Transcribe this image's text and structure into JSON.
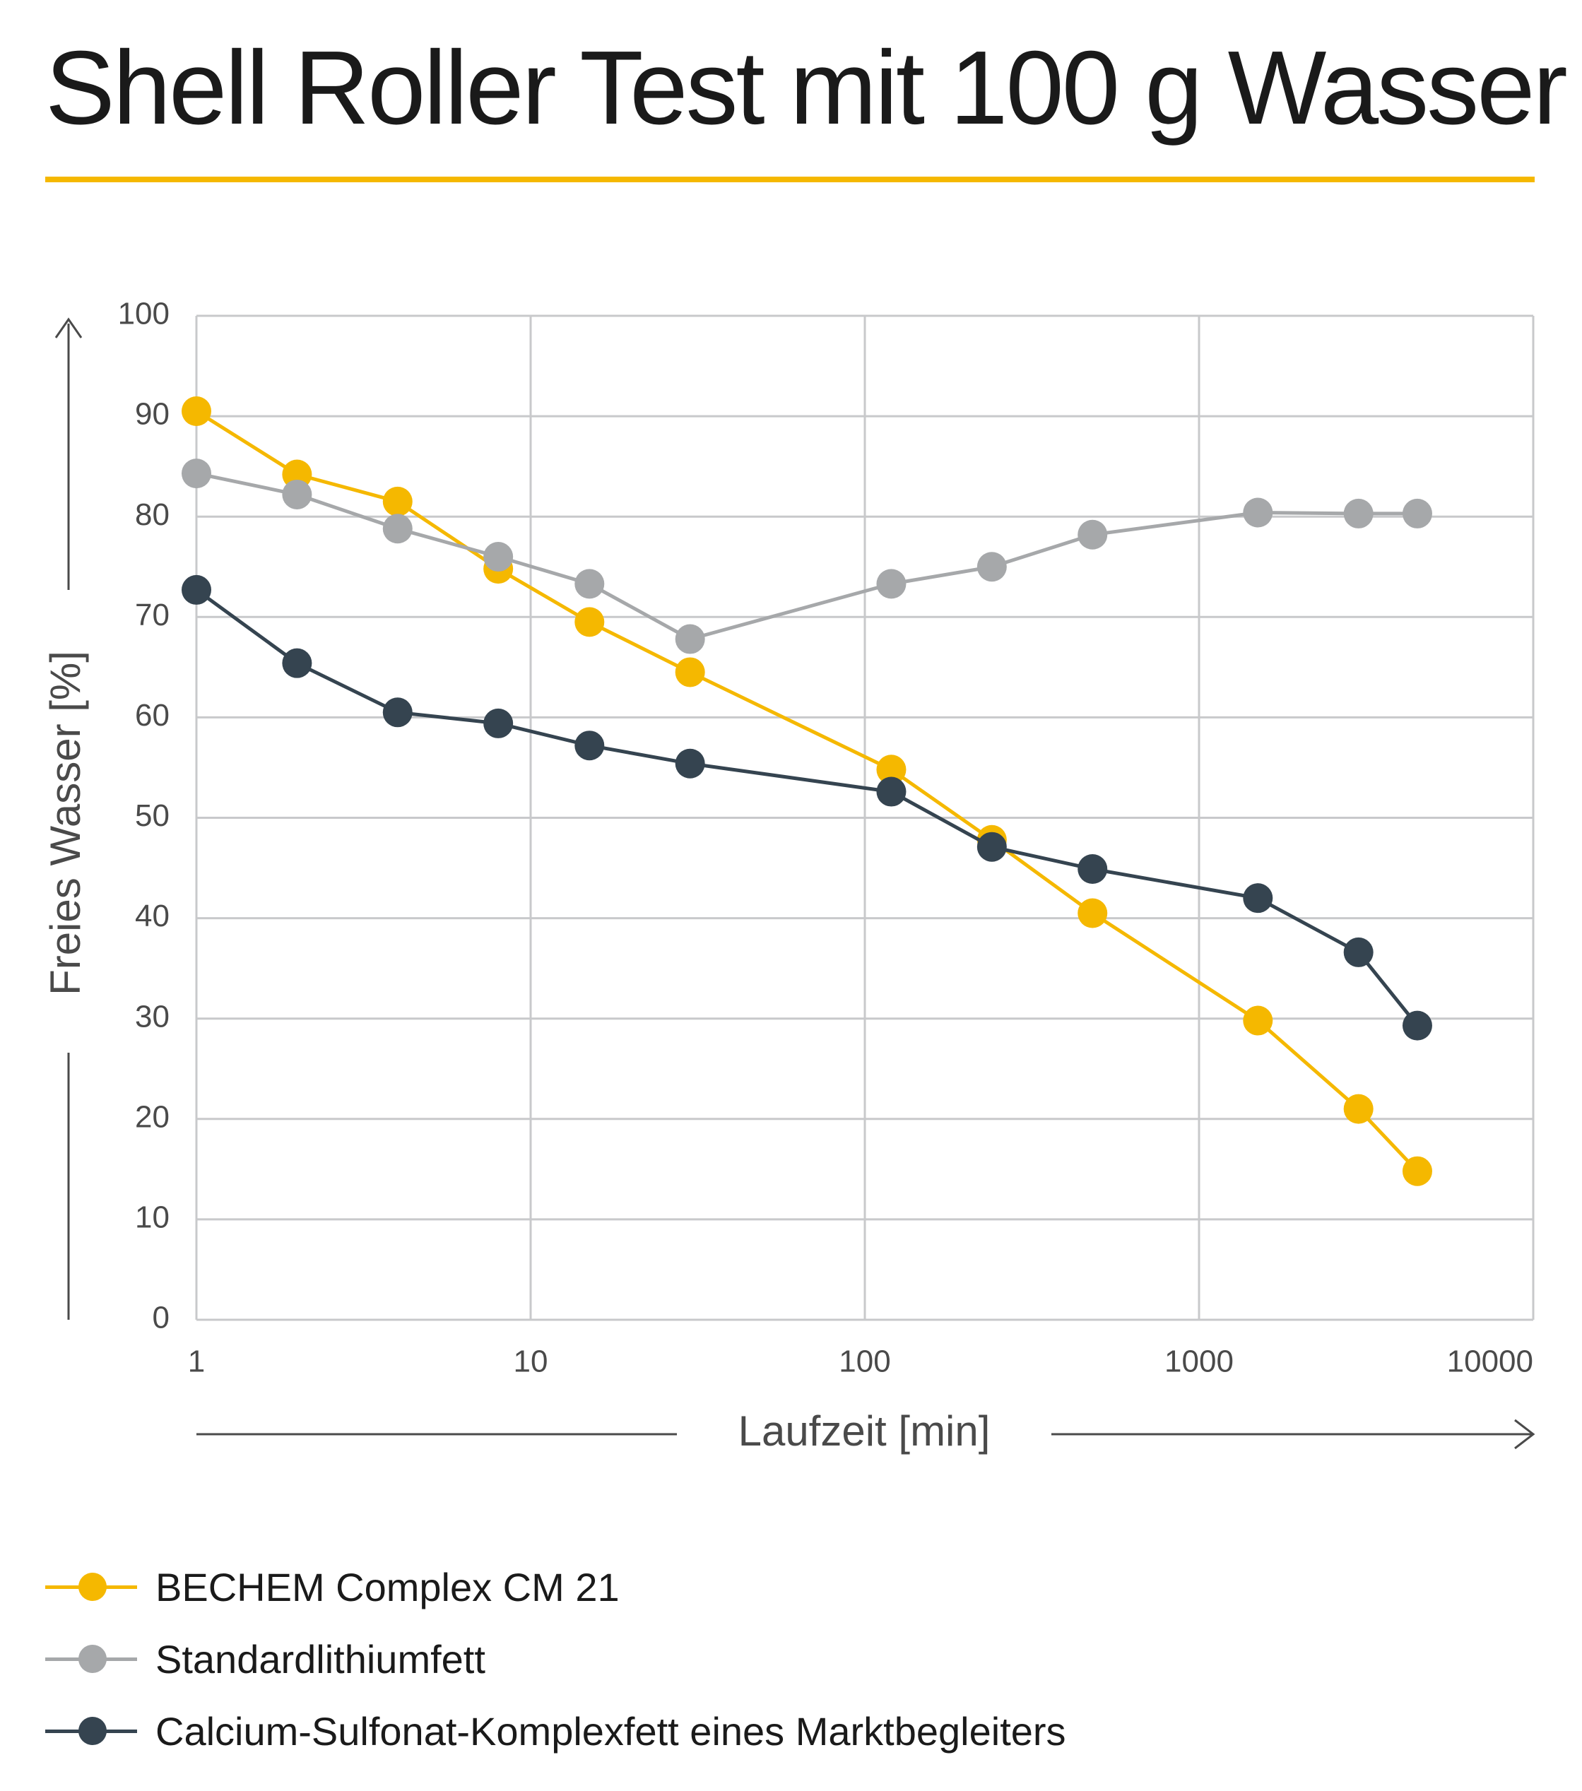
{
  "chart_data": {
    "type": "line",
    "title": "Shell Roller Test mit 100 g Wasser",
    "xlabel": "Laufzeit [min]",
    "ylabel": "Freies Wasser [%]",
    "xscale": "log",
    "xlim": [
      1,
      10000
    ],
    "ylim": [
      0,
      100
    ],
    "xticks": [
      1,
      10,
      100,
      1000,
      10000
    ],
    "xtick_labels": [
      "1",
      "10",
      "100",
      "1000",
      "10000"
    ],
    "yticks": [
      0,
      10,
      20,
      30,
      40,
      50,
      60,
      70,
      80,
      90,
      100
    ],
    "ytick_labels": [
      "0",
      "10",
      "20",
      "30",
      "40",
      "50",
      "60",
      "70",
      "80",
      "90",
      "100"
    ],
    "grid": true,
    "legend_position": "bottom",
    "series": [
      {
        "name": "BECHEM Complex CM 21",
        "color": "#f5b800",
        "x": [
          1,
          2,
          4,
          8,
          15,
          30,
          120,
          240,
          480,
          1500,
          3000,
          4500
        ],
        "y": [
          90.5,
          84.2,
          81.5,
          74.8,
          69.5,
          64.5,
          54.8,
          47.8,
          40.5,
          29.8,
          21.0,
          14.8
        ]
      },
      {
        "name": "Standardlithiumfett",
        "color": "#a6a8aa",
        "x": [
          1,
          2,
          4,
          8,
          15,
          30,
          120,
          240,
          480,
          1500,
          3000,
          4500
        ],
        "y": [
          84.3,
          82.2,
          78.8,
          76.0,
          73.3,
          67.8,
          73.3,
          75.0,
          78.2,
          80.4,
          80.3,
          80.3
        ]
      },
      {
        "name": "Calcium-Sulfonat-Komplexfett eines Marktbegleiters",
        "color": "#354450",
        "x": [
          1,
          2,
          4,
          8,
          15,
          30,
          120,
          240,
          480,
          1500,
          3000,
          4500
        ],
        "y": [
          72.7,
          65.4,
          60.5,
          59.4,
          57.2,
          55.4,
          52.6,
          47.1,
          44.9,
          42.0,
          36.6,
          29.3
        ]
      }
    ]
  },
  "style": {
    "accent": "#f5b800",
    "grid": "#c8c9cb",
    "axis_text": "#4a4a4a"
  }
}
